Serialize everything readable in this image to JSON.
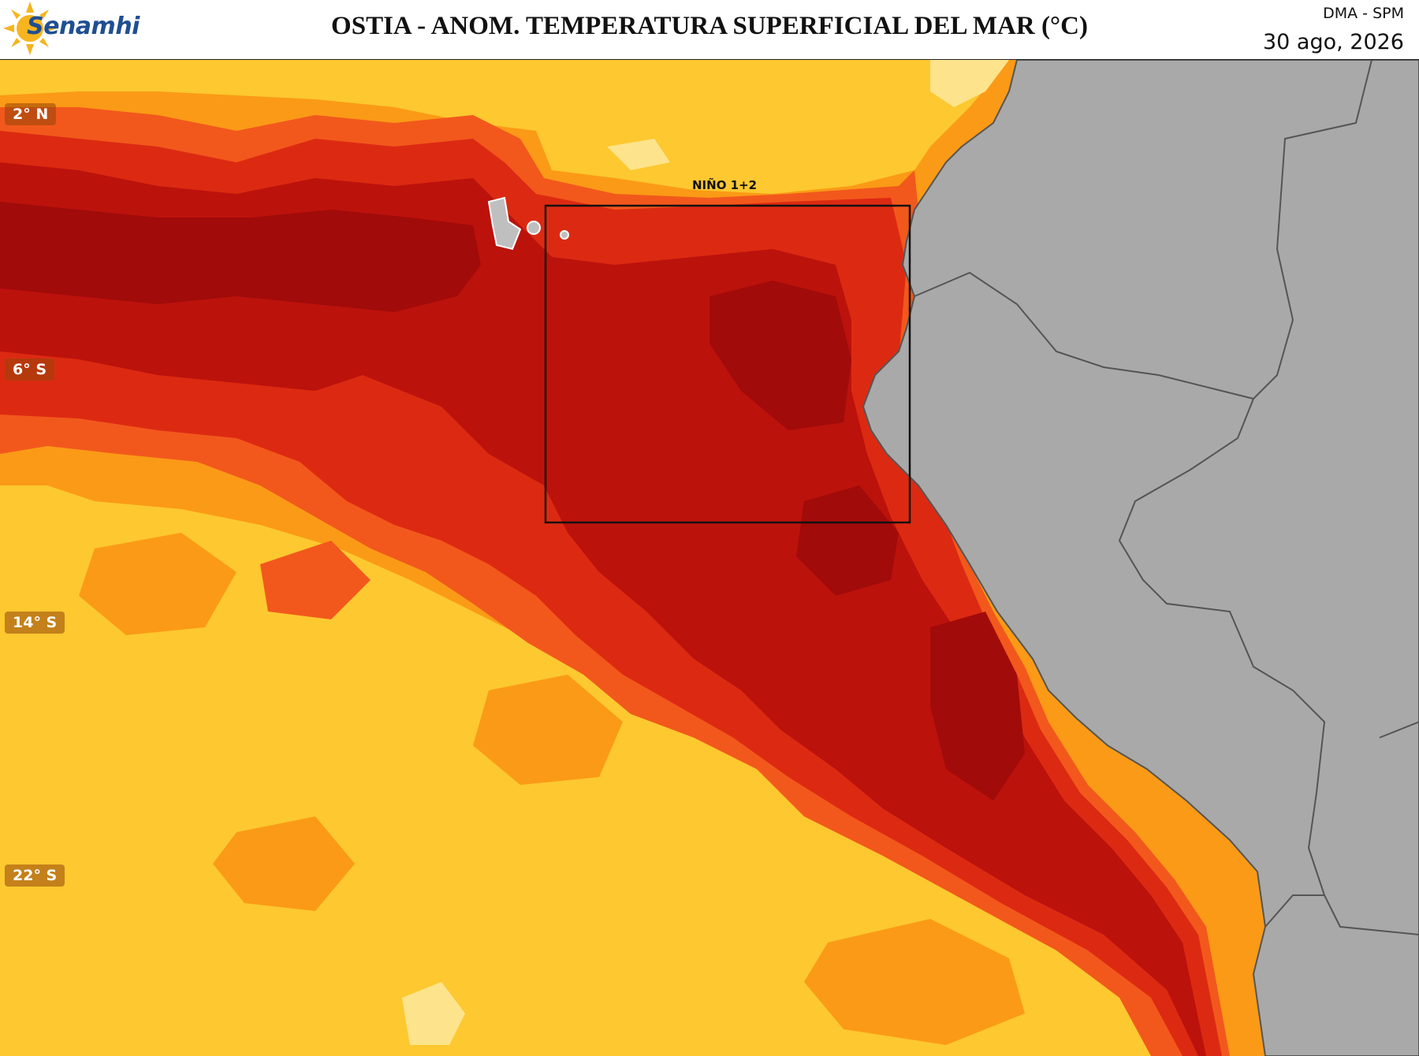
{
  "header": {
    "logo_text": "Senamhi",
    "title": "OSTIA - ANOM. TEMPERATURA SUPERFICIAL DEL MAR (°C)",
    "agency": "DMA - SPM",
    "date": "30 ago, 2026"
  },
  "map": {
    "lat_labels": [
      "2° N",
      "6° S",
      "14° S",
      "22° S"
    ],
    "region_box_label": "NIÑO 1+2",
    "colors": {
      "land": "#a9a9a9",
      "land_border": "#555555",
      "anomaly_yellow": "#fdc830",
      "anomaly_orange": "#fb9a16",
      "anomaly_orange_red": "#f2581c",
      "anomaly_red": "#dc2a12",
      "anomaly_dark_red": "#bc120c",
      "anomaly_darkest_red": "#a10b0a",
      "anomaly_pale_yellow": "#fde48c",
      "region_box": "#111111"
    }
  }
}
